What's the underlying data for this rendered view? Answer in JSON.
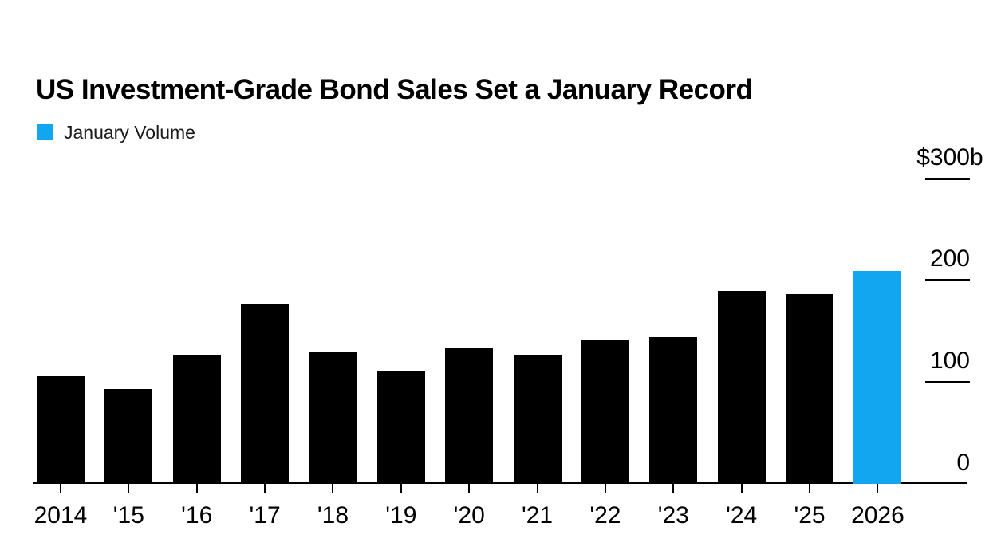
{
  "header": {
    "title": "US Investment-Grade Bond Sales Set a January Record"
  },
  "legend": {
    "label": "January Volume"
  },
  "colors": {
    "bar": "#000000",
    "highlight": "#12A5F0",
    "axis": "#000000",
    "background": "#ffffff"
  },
  "chart_data": {
    "type": "bar",
    "title": "US Investment-Grade Bond Sales Set a January Record",
    "legend_entries": [
      "January Volume"
    ],
    "legend_position": "top-left",
    "categories": [
      "2014",
      "'15",
      "'16",
      "'17",
      "'18",
      "'19",
      "'20",
      "'21",
      "'22",
      "'23",
      "'24",
      "'25",
      "2026"
    ],
    "values": [
      106,
      93,
      127,
      177,
      130,
      110,
      134,
      127,
      142,
      144,
      189,
      186,
      209
    ],
    "series": [
      {
        "name": "January Volume",
        "values": [
          106,
          93,
          127,
          177,
          130,
          110,
          134,
          127,
          142,
          144,
          189,
          186,
          209
        ]
      }
    ],
    "unit": "$ billions",
    "xlabel": "",
    "ylabel": "",
    "ylim": [
      0,
      300
    ],
    "grid": false,
    "axis_side": "right",
    "highlight_index": 12,
    "y_ticks": [
      {
        "label": "$300",
        "suffix": "b",
        "value": 300,
        "underline": true
      },
      {
        "label": "200",
        "suffix": "",
        "value": 200,
        "underline": true
      },
      {
        "label": "100",
        "suffix": "",
        "value": 100,
        "underline": true
      },
      {
        "label": "0",
        "suffix": "",
        "value": 0,
        "underline": false
      }
    ]
  }
}
